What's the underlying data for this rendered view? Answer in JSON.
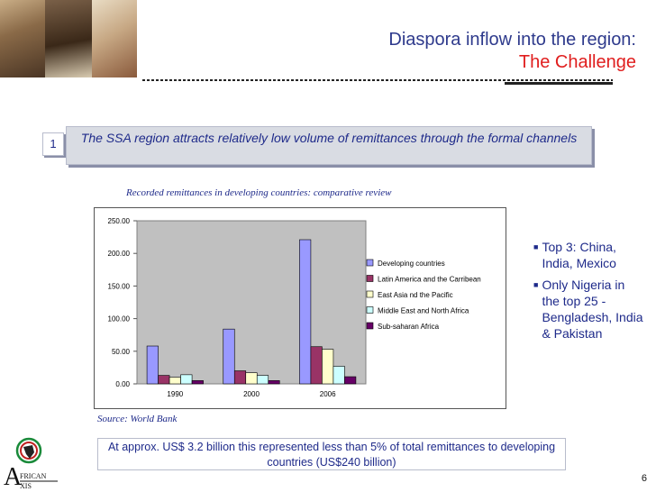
{
  "title": {
    "line1": "Diaspora inflow into the region:",
    "line2": "The Challenge"
  },
  "badge": "1",
  "banner": "The SSA region attracts relatively low volume of remittances through the formal channels",
  "chart_title": "Recorded remittances in developing countries: comparative review",
  "source": "Source: World Bank",
  "bullets": [
    "Top 3: China, India, Mexico",
    "Only Nigeria in the top 25 - Bengladesh, India & Pakistan"
  ],
  "bullet_symbol": "■",
  "bottom_note": "At approx. US$ 3.2 billion this represented less than 5% of total remittances to developing countries (US$240 billion)",
  "logo": {
    "letters": "AFRICAN AXIS"
  },
  "page_number": "6",
  "colors": {
    "title_blue": "#2e3a8c",
    "title_red": "#e01e1e",
    "text_blue": "#1e2a8a",
    "plot_bg": "#c0c0c0"
  },
  "chart_data": {
    "type": "bar",
    "categories": [
      "1990",
      "2000",
      "2006"
    ],
    "ylim": [
      0,
      250
    ],
    "yticks": [
      "250.00",
      "200.00",
      "150.00",
      "100.00",
      "50.00",
      "0.00"
    ],
    "grid": false,
    "legend_position": "right",
    "series": [
      {
        "name": "Developing countries",
        "color": "#9999ff",
        "values": [
          58,
          84,
          221
        ]
      },
      {
        "name": "Latin America and the Carribean",
        "color": "#993366",
        "values": [
          13,
          20,
          57
        ]
      },
      {
        "name": "East Asia nd the Pacific",
        "color": "#ffffcc",
        "values": [
          10,
          17,
          53
        ]
      },
      {
        "name": "Middle East and North Africa",
        "color": "#ccffff",
        "values": [
          14,
          13,
          27
        ]
      },
      {
        "name": "Sub-saharan Africa",
        "color": "#660066",
        "values": [
          5,
          5,
          11
        ]
      }
    ]
  }
}
